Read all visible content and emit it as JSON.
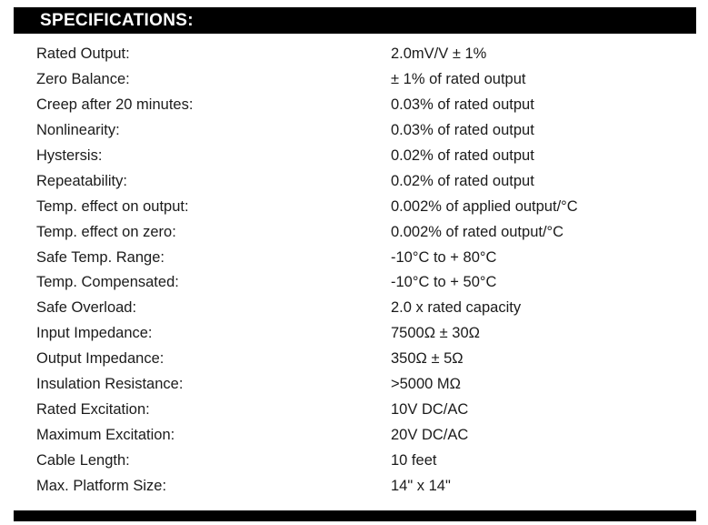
{
  "page": {
    "header_title": "SPECIFICATIONS:"
  },
  "colors": {
    "header_bg": "#000000",
    "header_text": "#ffffff",
    "body_text": "#1b1b1b"
  },
  "specs": {
    "rows": [
      {
        "label": "Rated Output:",
        "value": "2.0mV/V ± 1%"
      },
      {
        "label": "Zero Balance:",
        "value": "± 1% of rated output"
      },
      {
        "label": "Creep after 20 minutes:",
        "value": "0.03% of rated output"
      },
      {
        "label": "Nonlinearity:",
        "value": "0.03% of rated output"
      },
      {
        "label": "Hystersis:",
        "value": "0.02% of rated output"
      },
      {
        "label": "Repeatability:",
        "value": "0.02% of rated output"
      },
      {
        "label": "Temp. effect on output:",
        "value": "0.002% of applied output/°C"
      },
      {
        "label": "Temp. effect on zero:",
        "value": "0.002% of rated output/°C"
      },
      {
        "label": "Safe Temp. Range:",
        "value": "-10°C to + 80°C"
      },
      {
        "label": "Temp. Compensated:",
        "value": "-10°C to + 50°C"
      },
      {
        "label": "Safe Overload:",
        "value": "2.0 x rated capacity"
      },
      {
        "label": "Input Impedance:",
        "value": "7500Ω ± 30Ω"
      },
      {
        "label": "Output Impedance:",
        "value": "350Ω ± 5Ω"
      },
      {
        "label": "Insulation Resistance:",
        "value": ">5000 MΩ"
      },
      {
        "label": "Rated Excitation:",
        "value": "10V DC/AC"
      },
      {
        "label": "Maximum Excitation:",
        "value": "20V DC/AC"
      },
      {
        "label": "Cable Length:",
        "value": "10 feet"
      },
      {
        "label": "Max. Platform Size:",
        "value": "14\" x 14\""
      }
    ]
  }
}
